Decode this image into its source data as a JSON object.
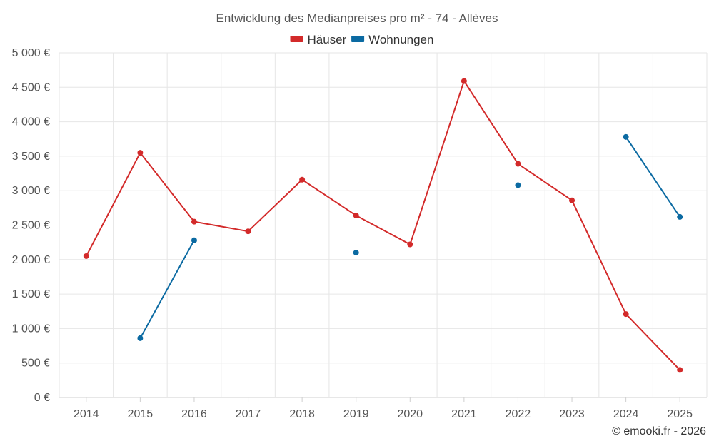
{
  "chart_data": {
    "type": "line",
    "title": "Entwicklung des Medianpreises pro m² - 74 - Allèves",
    "categories": [
      "2014",
      "2015",
      "2016",
      "2017",
      "2018",
      "2019",
      "2020",
      "2021",
      "2022",
      "2023",
      "2024",
      "2025"
    ],
    "ylim": [
      0,
      5000
    ],
    "yticks": [
      0,
      500,
      1000,
      1500,
      2000,
      2500,
      3000,
      3500,
      4000,
      4500,
      5000
    ],
    "ytick_labels": [
      "0 €",
      "500 €",
      "1 000 €",
      "1 500 €",
      "2 000 €",
      "2 500 €",
      "3 000 €",
      "3 500 €",
      "4 000 €",
      "4 500 €",
      "5 000 €"
    ],
    "grid": true,
    "legend_position": "top-center",
    "series": [
      {
        "name": "Häuser",
        "color": "#d32a2a",
        "values": [
          2050,
          3550,
          2550,
          2410,
          3160,
          2640,
          2220,
          4590,
          3390,
          2860,
          1210,
          400
        ]
      },
      {
        "name": "Wohnungen",
        "color": "#0b6aa2",
        "values": [
          null,
          860,
          2280,
          null,
          null,
          2100,
          null,
          null,
          3080,
          null,
          3780,
          2620
        ]
      }
    ]
  },
  "credit": "© emooki.fr - 2026"
}
